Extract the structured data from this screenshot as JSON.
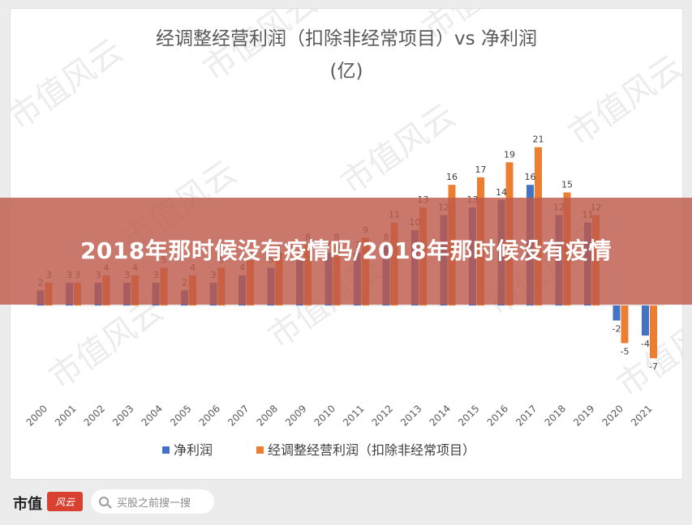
{
  "page": {
    "overlay_title": "2018年那时候没有疫情吗/2018年那时候没有疫情",
    "brand_name": "市值",
    "brand_mark": "风云",
    "search_placeholder": "买股之前搜一搜",
    "watermark": "市值风云"
  },
  "chart_data": {
    "type": "bar",
    "title": "经调整经营利润（扣除非经常项目）vs 净利润",
    "subtitle": "(亿)",
    "categories": [
      "2000",
      "2001",
      "2002",
      "2003",
      "2004",
      "2005",
      "2006",
      "2007",
      "2008",
      "2009",
      "2010",
      "2011",
      "2012",
      "2013",
      "2014",
      "2015",
      "2016",
      "2017",
      "2018",
      "2019",
      "2020",
      "2021"
    ],
    "series": [
      {
        "name": "净利润",
        "color": "#4472c4",
        "values": [
          2,
          3,
          3,
          3,
          3,
          2,
          3,
          4,
          5,
          6,
          7,
          7,
          8,
          10,
          12,
          13,
          14,
          16,
          12,
          11,
          -2,
          -4
        ]
      },
      {
        "name": "经调整经营利润（扣除非经常项目）",
        "color": "#ed7d31",
        "values": [
          3,
          3,
          4,
          4,
          5,
          4,
          5,
          6,
          7,
          8,
          8,
          9,
          11,
          13,
          16,
          17,
          19,
          21,
          15,
          12,
          -5,
          -7
        ]
      }
    ],
    "ylim": [
      -8,
      22
    ],
    "grid": false,
    "legend": "bottom",
    "data_labels": true
  }
}
